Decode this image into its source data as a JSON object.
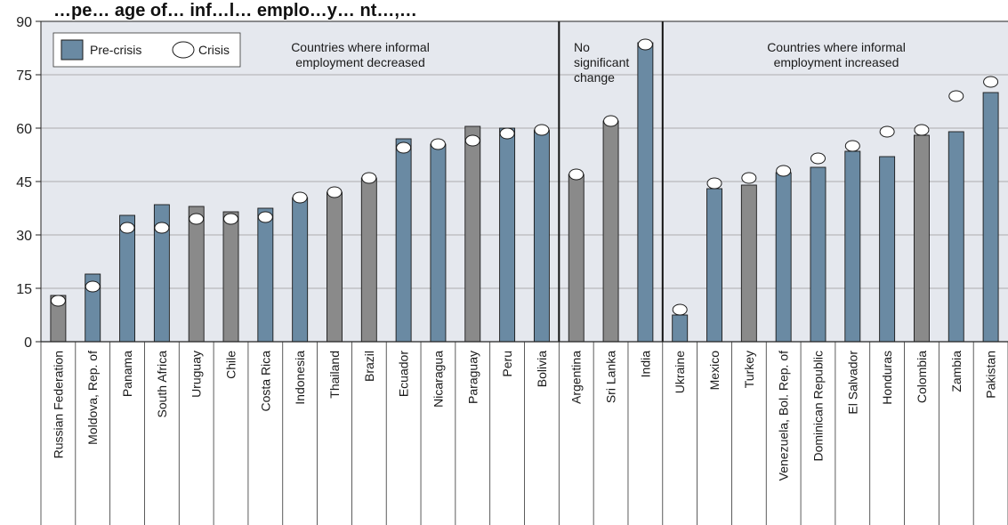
{
  "chart_data": {
    "type": "bar",
    "title": "…pe… age of… inf…l… emplo…y… nt…,… ",
    "ylim": [
      0,
      90
    ],
    "yticks": [
      0,
      15,
      30,
      45,
      60,
      75,
      90
    ],
    "grid": true,
    "legend": {
      "placement": "top-left",
      "entries": [
        "Pre-crisis",
        "Crisis"
      ]
    },
    "colors": {
      "panel": "#e5e8ee",
      "bar_blue": "#6a8aa3",
      "bar_gray": "#8a8a8a",
      "marker_fill": "#ffffff"
    },
    "groups": [
      {
        "label": "Countries where informal employment decreased",
        "label_lines": [
          "Countries where informal",
          "employment decreased"
        ]
      },
      {
        "label": "No significant change",
        "label_lines": [
          "No",
          "significant",
          "change"
        ]
      },
      {
        "label": "Countries where informal employment increased",
        "label_lines": [
          "Countries where informal",
          "employment increased"
        ]
      }
    ],
    "categories": [
      "Russian Federation",
      "Moldova, Rep. of",
      "Panama",
      "South Africa",
      "Uruguay",
      "Chile",
      "Costa Rica",
      "Indonesia",
      "Thailand",
      "Brazil",
      "Ecuador",
      "Nicaragua",
      "Paraguay",
      "Peru",
      "Bolivia",
      "Argentina",
      "Sri Lanka",
      "India",
      "Ukraine",
      "Mexico",
      "Turkey",
      "Venezuela, Bol. Rep. of",
      "Dominican Republic",
      "El Salvador",
      "Honduras",
      "Colombia",
      "Zambia",
      "Pakistan"
    ],
    "group_of": [
      0,
      0,
      0,
      0,
      0,
      0,
      0,
      0,
      0,
      0,
      0,
      0,
      0,
      0,
      0,
      1,
      1,
      1,
      2,
      2,
      2,
      2,
      2,
      2,
      2,
      2,
      2,
      2
    ],
    "bar_color": [
      "gray",
      "blue",
      "blue",
      "blue",
      "gray",
      "gray",
      "blue",
      "blue",
      "gray",
      "gray",
      "blue",
      "blue",
      "gray",
      "blue",
      "blue",
      "gray",
      "gray",
      "blue",
      "blue",
      "blue",
      "gray",
      "blue",
      "blue",
      "blue",
      "blue",
      "gray",
      "blue",
      "blue"
    ],
    "series": [
      {
        "name": "Pre-crisis",
        "values": [
          13,
          19,
          35.5,
          38.5,
          38,
          36.5,
          37.5,
          40.5,
          42,
          46,
          57,
          55.5,
          60.5,
          60,
          59.5,
          47,
          62,
          84,
          7.5,
          43,
          44,
          47.5,
          49,
          53.5,
          52,
          58,
          59,
          70
        ]
      },
      {
        "name": "Crisis",
        "values": [
          11.5,
          15.5,
          32,
          32,
          34.5,
          34.5,
          35,
          40.5,
          42,
          46,
          54.5,
          55.5,
          56.5,
          58.5,
          59.5,
          47,
          62,
          83.5,
          9,
          44.5,
          46,
          48,
          51.5,
          55,
          59,
          59.5,
          69,
          73
        ]
      }
    ]
  }
}
